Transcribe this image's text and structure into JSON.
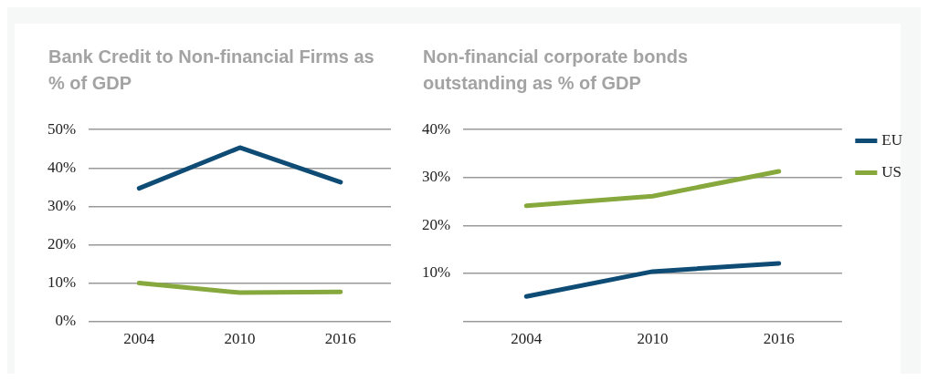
{
  "chart_data": [
    {
      "type": "line",
      "title": "Bank Credit to Non-financial Firms as % of GDP",
      "categories": [
        "2004",
        "2010",
        "2016"
      ],
      "series": [
        {
          "color": "#0f4c75",
          "values": [
            34.7,
            45.3,
            36.3
          ]
        },
        {
          "color": "#86a83c",
          "values": [
            10,
            7.5,
            7.7
          ]
        }
      ],
      "ylim": [
        0,
        50
      ],
      "yticks": [
        {
          "value": 0,
          "label": "0%"
        },
        {
          "value": 10,
          "label": "10%"
        },
        {
          "value": 20,
          "label": "20%"
        },
        {
          "value": 30,
          "label": "30%"
        },
        {
          "value": 40,
          "label": "40%"
        },
        {
          "value": 50,
          "label": "50%"
        }
      ],
      "grid": "y",
      "legend": false
    },
    {
      "type": "line",
      "title": "Non-financial corporate bonds outstanding as % of GDP",
      "categories": [
        "2004",
        "2010",
        "2016"
      ],
      "series": [
        {
          "name": "EU",
          "color": "#0f4c75",
          "values": [
            5.2,
            10.4,
            12.1
          ]
        },
        {
          "name": "US",
          "color": "#86a83c",
          "values": [
            24.1,
            26.1,
            31.3
          ]
        }
      ],
      "ylim": [
        0,
        40
      ],
      "yticks": [
        {
          "value": 0,
          "label": null
        },
        {
          "value": 10,
          "label": "10%"
        },
        {
          "value": 20,
          "label": "20%"
        },
        {
          "value": 30,
          "label": "30%"
        },
        {
          "value": 40,
          "label": "40%"
        }
      ],
      "grid": "y",
      "legend": "right"
    }
  ]
}
